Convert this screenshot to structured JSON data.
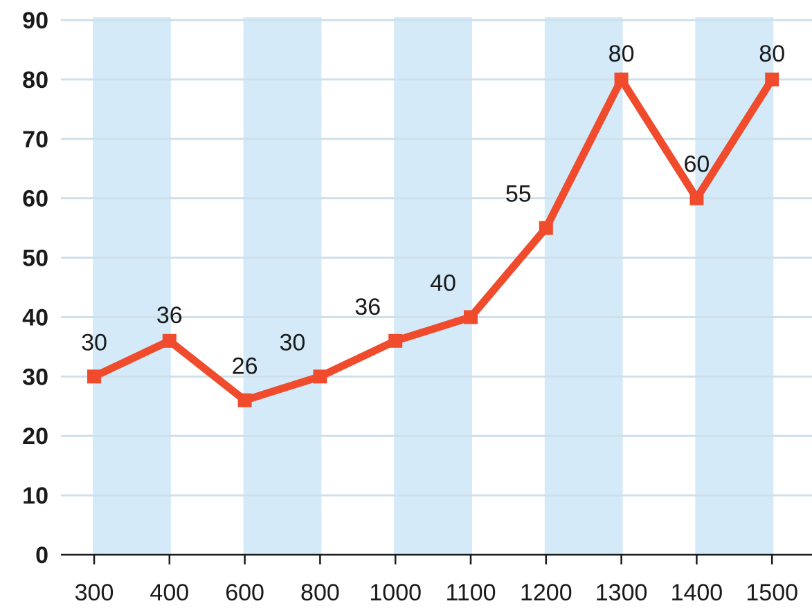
{
  "chart_data": {
    "type": "line",
    "categories": [
      "300",
      "400",
      "600",
      "800",
      "1000",
      "1100",
      "1200",
      "1300",
      "1400",
      "1500"
    ],
    "series": [
      {
        "values": [
          30,
          36,
          26,
          30,
          36,
          40,
          55,
          80,
          60,
          80
        ],
        "data_labels": [
          "30",
          "36",
          "26",
          "30",
          "36",
          "40",
          "55",
          "80",
          "60",
          "80"
        ]
      }
    ],
    "title": "",
    "xlabel": "",
    "ylabel": "",
    "ylim": [
      0,
      90
    ],
    "y_ticks": [
      "0",
      "10",
      "20",
      "30",
      "40",
      "50",
      "60",
      "70",
      "80",
      "90"
    ],
    "grid": "horizontal",
    "background_bands": "alternating-columns",
    "colors": {
      "line": "#ef4b2c",
      "band": "#d4eaf8",
      "grid": "#cfe0ea",
      "text": "#1a1a1a"
    }
  }
}
